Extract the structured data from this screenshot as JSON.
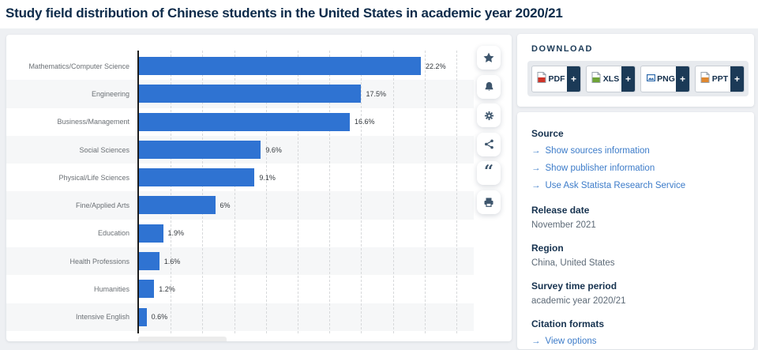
{
  "page": {
    "title": "Study field distribution of Chinese students in the United States in academic year 2020/21",
    "background": "#eef0f3"
  },
  "chart_data": {
    "type": "bar",
    "orientation": "horizontal",
    "title": "Study field distribution of Chinese students in the United States in academic year 2020/21",
    "categories": [
      "Mathematics/Computer Science",
      "Engineering",
      "Business/Management",
      "Social Sciences",
      "Physical/Life Sciences",
      "Fine/Applied Arts",
      "Education",
      "Health Professions",
      "Humanities",
      "Intensive English"
    ],
    "values": [
      22.2,
      17.5,
      16.6,
      9.6,
      9.1,
      6,
      1.9,
      1.6,
      1.2,
      0.6
    ],
    "value_labels": [
      "22.2%",
      "17.5%",
      "16.6%",
      "9.6%",
      "9.1%",
      "6%",
      "1.9%",
      "1.6%",
      "1.2%",
      "0.6%"
    ],
    "unit": "%",
    "xlim": [
      0,
      26.3
    ],
    "gridline_step_pct": 2.5,
    "grid": "vertical-dashed",
    "legend": "none",
    "bar_color": "#2f73d2",
    "stripe_color": "#f6f7f8"
  },
  "toolbar": {
    "icons": [
      "favorite-star",
      "notification-bell",
      "settings-gear",
      "share",
      "citation-quote",
      "print"
    ],
    "quote_glyph": "“"
  },
  "sidebar": {
    "download": {
      "heading": "DOWNLOAD",
      "buttons": [
        {
          "label": "PDF",
          "plus": "+",
          "icon_color": "#cf3428"
        },
        {
          "label": "XLS",
          "plus": "+",
          "icon_color": "#6fa437"
        },
        {
          "label": "PNG",
          "plus": "+",
          "icon_color": "#2f6bad"
        },
        {
          "label": "PPT",
          "plus": "+",
          "icon_color": "#e0882f"
        }
      ]
    },
    "info": {
      "source": {
        "heading": "Source",
        "arrow": "→",
        "links": [
          "Show sources information",
          "Show publisher information",
          "Use Ask Statista Research Service"
        ]
      },
      "release_date": {
        "heading": "Release date",
        "value": "November 2021"
      },
      "region": {
        "heading": "Region",
        "value": "China, United States"
      },
      "survey_period": {
        "heading": "Survey time period",
        "value": "academic year 2020/21"
      },
      "citation": {
        "heading": "Citation formats",
        "arrow": "→",
        "link": "View options"
      }
    }
  },
  "colors": {
    "bar": "#2f73d2",
    "link": "#3d7cc9",
    "heading": "#16324f",
    "title": "#0d2b4a",
    "plus_segment": "#1b3a57",
    "icon": "#3e566d"
  }
}
